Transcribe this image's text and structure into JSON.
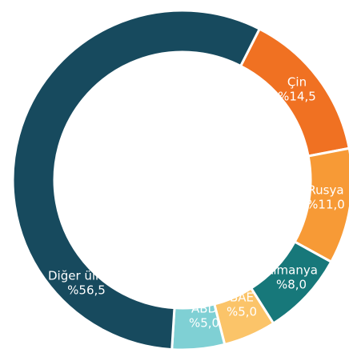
{
  "chart_data": {
    "type": "donut",
    "categories": [
      "Çin",
      "Rusya",
      "Almanya",
      "BAE",
      "ABD",
      "Diğer ülkeler"
    ],
    "values": [
      14.5,
      11.0,
      8.0,
      5.0,
      5.0,
      56.5
    ],
    "value_labels": [
      "%14,5",
      "%11,0",
      "%8,0",
      "%5,0",
      "%5,0",
      "%56,5"
    ],
    "colors": [
      "#f07122",
      "#f79a36",
      "#17787a",
      "#fbc469",
      "#7fd0d4",
      "#174a5e"
    ]
  }
}
